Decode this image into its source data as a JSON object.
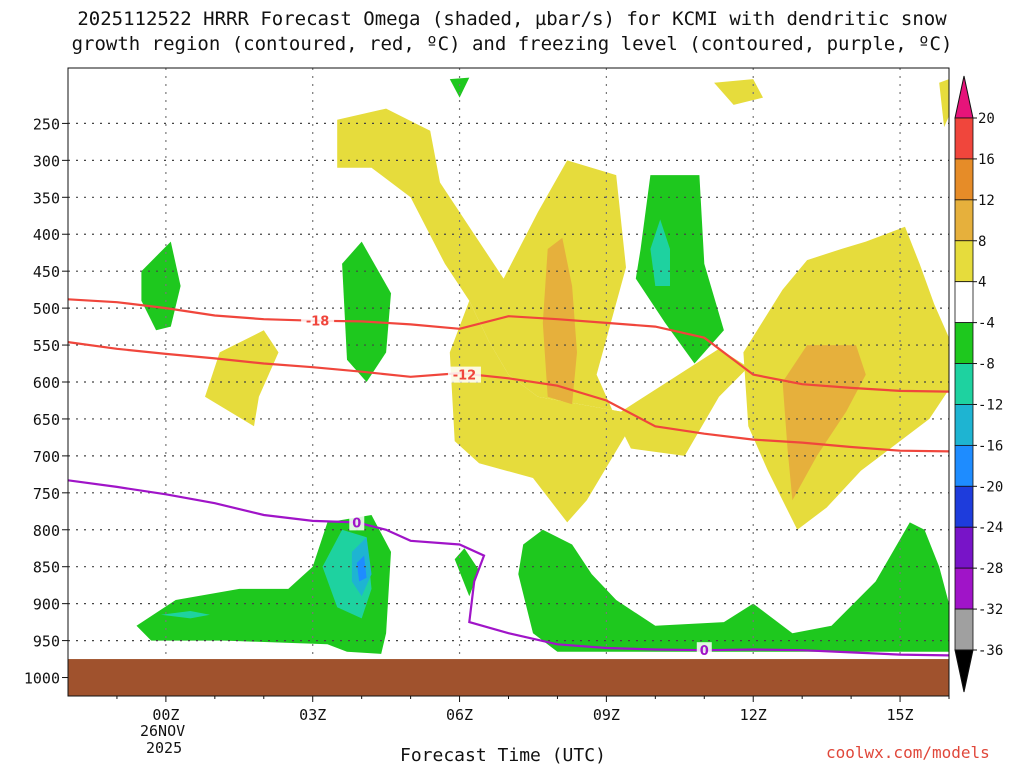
{
  "title_line1": "2025112522 HRRR Forecast Omega (shaded, µbar/s) for KCMI with dendritic snow",
  "title_line2": "growth region (contoured, red, ºC) and freezing level (contoured, purple, ºC)",
  "xlabel": "Forecast Time (UTC)",
  "credit": "coolwx.com/models",
  "date_line1": "26NOV",
  "date_line2": "2025",
  "chart_data": {
    "type": "contourf-timeheight",
    "x_ticks": [
      {
        "hour": 0,
        "label": "00Z"
      },
      {
        "hour": 3,
        "label": "03Z"
      },
      {
        "hour": 6,
        "label": "06Z"
      },
      {
        "hour": 9,
        "label": "09Z"
      },
      {
        "hour": 12,
        "label": "12Z"
      },
      {
        "hour": 15,
        "label": "15Z"
      }
    ],
    "xlim_hours": [
      -2,
      16
    ],
    "y_ticks": [
      250,
      300,
      350,
      400,
      450,
      500,
      550,
      600,
      650,
      700,
      750,
      800,
      850,
      900,
      950,
      1000
    ],
    "ylim_hpa": [
      175,
      1025
    ],
    "ground_hpa": 975,
    "colors": {
      "ground": "#a0522d",
      "yellow": "#e6dc3c",
      "orange": "#e6b03c",
      "green": "#1ec81e",
      "teal": "#1ed2a0",
      "cyan": "#1eb4d2",
      "blue": "#1e8cff",
      "contour_red": "#f0463c",
      "contour_purple": "#a014c8",
      "grid": "#888888"
    },
    "colorbar": [
      {
        "label": "20",
        "color": "#e6147a"
      },
      {
        "label": "16",
        "color": "#f0463c"
      },
      {
        "label": "12",
        "color": "#e68c28"
      },
      {
        "label": "8",
        "color": "#e6b03c"
      },
      {
        "label": "4",
        "color": "#e6dc3c"
      },
      {
        "label": "-4",
        "color": "#ffffff"
      },
      {
        "label": "-8",
        "color": "#1ec81e"
      },
      {
        "label": "-12",
        "color": "#1ed2a0"
      },
      {
        "label": "-16",
        "color": "#1eb4d2"
      },
      {
        "label": "-20",
        "color": "#1e8cff"
      },
      {
        "label": "-24",
        "color": "#1e3cdc"
      },
      {
        "label": "-28",
        "color": "#7814c8"
      },
      {
        "label": "-32",
        "color": "#a014c8"
      },
      {
        "label": "-36",
        "color": "#a0a0a0"
      }
    ],
    "colorbar_top_color": "#e6147a",
    "colorbar_bottom_color": "#000000",
    "contours": [
      {
        "name": "minus18-contour",
        "label": "-18",
        "label_at": {
          "t": 3.1,
          "p": 517
        },
        "color": "contour_red",
        "points": [
          [
            -2,
            488
          ],
          [
            -1,
            492
          ],
          [
            0,
            500
          ],
          [
            1,
            510
          ],
          [
            2,
            515
          ],
          [
            3,
            517
          ],
          [
            4,
            518
          ],
          [
            5,
            522
          ],
          [
            6,
            528
          ],
          [
            7,
            511
          ],
          [
            8,
            515
          ],
          [
            9,
            520
          ],
          [
            10,
            525
          ],
          [
            11,
            540
          ],
          [
            12,
            590
          ],
          [
            13,
            603
          ],
          [
            14,
            608
          ],
          [
            15,
            612
          ],
          [
            16,
            613
          ]
        ]
      },
      {
        "name": "minus12-contour",
        "label": "-12",
        "label_at": {
          "t": 6.1,
          "p": 590
        },
        "color": "contour_red",
        "points": [
          [
            -2,
            546
          ],
          [
            -1,
            555
          ],
          [
            0,
            562
          ],
          [
            1,
            568
          ],
          [
            2,
            575
          ],
          [
            3,
            580
          ],
          [
            4,
            586
          ],
          [
            5,
            593
          ],
          [
            6,
            588
          ],
          [
            7,
            595
          ],
          [
            8,
            605
          ],
          [
            9,
            625
          ],
          [
            10,
            660
          ],
          [
            11,
            670
          ],
          [
            12,
            678
          ],
          [
            13,
            682
          ],
          [
            14,
            688
          ],
          [
            15,
            693
          ],
          [
            16,
            694
          ]
        ]
      },
      {
        "name": "freezing-level-contour",
        "label": "0",
        "label_at": {
          "t": 3.9,
          "p": 790
        },
        "color": "contour_purple",
        "points": [
          [
            -2,
            733
          ],
          [
            -1,
            742
          ],
          [
            0,
            752
          ],
          [
            1,
            764
          ],
          [
            2,
            780
          ],
          [
            3,
            788
          ],
          [
            3.9,
            790
          ],
          [
            4.5,
            800
          ],
          [
            5,
            815
          ],
          [
            6,
            820
          ],
          [
            6.5,
            835
          ],
          [
            6.3,
            870
          ],
          [
            6.2,
            925
          ],
          [
            7,
            940
          ],
          [
            8,
            955
          ],
          [
            9,
            960
          ],
          [
            10,
            962
          ],
          [
            11,
            963
          ],
          [
            12,
            962
          ],
          [
            13,
            963
          ],
          [
            14,
            966
          ],
          [
            15,
            969
          ],
          [
            16,
            970
          ]
        ]
      },
      {
        "name": "freezing-level-lower-contour",
        "label": "0",
        "label_at": {
          "t": 11,
          "p": 963
        },
        "color": "contour_purple",
        "points": []
      }
    ],
    "shaded_regions": [
      {
        "name": "yellow-region-upper-center",
        "value": "4 to 8",
        "color": "yellow",
        "points": [
          [
            3.5,
            245
          ],
          [
            4.5,
            230
          ],
          [
            5.4,
            260
          ],
          [
            5.6,
            330
          ],
          [
            6.3,
            400
          ],
          [
            6.9,
            460
          ],
          [
            7.6,
            370
          ],
          [
            8.2,
            300
          ],
          [
            9.2,
            320
          ],
          [
            9.4,
            445
          ],
          [
            8.8,
            590
          ],
          [
            9.2,
            650
          ],
          [
            9.5,
            690
          ],
          [
            10.6,
            700
          ],
          [
            11.3,
            620
          ],
          [
            11.9,
            580
          ],
          [
            11.3,
            555
          ],
          [
            9.3,
            640
          ],
          [
            7.6,
            620
          ],
          [
            7,
            590
          ],
          [
            6.6,
            545
          ],
          [
            6.2,
            490
          ],
          [
            5.7,
            440
          ],
          [
            5,
            350
          ],
          [
            4.2,
            310
          ],
          [
            3.5,
            310
          ]
        ]
      },
      {
        "name": "yellow-region-lower-center",
        "value": "4 to 8",
        "color": "yellow",
        "points": [
          [
            6.2,
            490
          ],
          [
            6.6,
            545
          ],
          [
            7,
            590
          ],
          [
            7.6,
            620
          ],
          [
            9.3,
            640
          ],
          [
            9.5,
            660
          ],
          [
            8.6,
            760
          ],
          [
            8.2,
            790
          ],
          [
            7.5,
            730
          ],
          [
            6.4,
            710
          ],
          [
            5.9,
            680
          ],
          [
            5.8,
            560
          ]
        ]
      },
      {
        "name": "yellow-region-right",
        "value": "4 to 8",
        "color": "yellow",
        "points": [
          [
            11.8,
            560
          ],
          [
            12.6,
            475
          ],
          [
            13.1,
            435
          ],
          [
            13.8,
            420
          ],
          [
            14.3,
            410
          ],
          [
            15.1,
            390
          ],
          [
            15.4,
            440
          ],
          [
            15.7,
            495
          ],
          [
            16,
            540
          ],
          [
            16,
            610
          ],
          [
            15.6,
            650
          ],
          [
            14.8,
            690
          ],
          [
            14.2,
            720
          ],
          [
            13.5,
            770
          ],
          [
            12.9,
            800
          ],
          [
            12.3,
            720
          ],
          [
            11.9,
            660
          ]
        ]
      },
      {
        "name": "yellow-region-left",
        "value": "4 to 8",
        "color": "yellow",
        "points": [
          [
            1.1,
            560
          ],
          [
            2.0,
            530
          ],
          [
            2.3,
            560
          ],
          [
            1.9,
            620
          ],
          [
            1.8,
            660
          ],
          [
            0.8,
            620
          ]
        ]
      },
      {
        "name": "yellow-region-top-right",
        "value": "4 to 8",
        "color": "yellow",
        "points": [
          [
            11.2,
            195
          ],
          [
            12.0,
            190
          ],
          [
            12.2,
            215
          ],
          [
            11.6,
            225
          ]
        ]
      },
      {
        "name": "yellow-region-edge",
        "value": "4 to 8",
        "color": "yellow",
        "points": [
          [
            15.8,
            195
          ],
          [
            16,
            190
          ],
          [
            16,
            240
          ],
          [
            15.9,
            255
          ]
        ]
      },
      {
        "name": "orange-region-center",
        "value": "8 to 12",
        "color": "orange",
        "points": [
          [
            7.8,
            420
          ],
          [
            8.1,
            405
          ],
          [
            8.3,
            470
          ],
          [
            8.4,
            560
          ],
          [
            8.3,
            630
          ],
          [
            7.8,
            620
          ],
          [
            7.7,
            520
          ]
        ]
      },
      {
        "name": "orange-region-right",
        "value": "8 to 12",
        "color": "orange",
        "points": [
          [
            12.6,
            600
          ],
          [
            13.1,
            550
          ],
          [
            14.1,
            550
          ],
          [
            14.3,
            590
          ],
          [
            13.9,
            640
          ],
          [
            13.3,
            700
          ],
          [
            12.8,
            760
          ],
          [
            12.7,
            690
          ]
        ]
      },
      {
        "name": "green-region-right-upper",
        "value": "-4 to -8",
        "color": "green",
        "points": [
          [
            9.7,
            420
          ],
          [
            9.9,
            320
          ],
          [
            10.9,
            320
          ],
          [
            11.0,
            440
          ],
          [
            11.4,
            530
          ],
          [
            10.8,
            575
          ],
          [
            10.2,
            520
          ],
          [
            9.6,
            460
          ]
        ]
      },
      {
        "name": "green-region-center",
        "value": "-4 to -8",
        "color": "green",
        "points": [
          [
            3.6,
            440
          ],
          [
            4.0,
            410
          ],
          [
            4.6,
            480
          ],
          [
            4.5,
            560
          ],
          [
            4.1,
            600
          ],
          [
            3.7,
            570
          ]
        ]
      },
      {
        "name": "green-region-left",
        "value": "-4 to -8",
        "color": "green",
        "points": [
          [
            -0.5,
            450
          ],
          [
            0.1,
            410
          ],
          [
            0.3,
            470
          ],
          [
            0.1,
            525
          ],
          [
            -0.2,
            530
          ],
          [
            -0.5,
            490
          ]
        ]
      },
      {
        "name": "green-region-top",
        "value": "-4 to -8",
        "color": "green",
        "points": [
          [
            5.8,
            190
          ],
          [
            6.2,
            188
          ],
          [
            6.0,
            215
          ]
        ]
      },
      {
        "name": "green-region-low-left",
        "value": "-4 to -8",
        "color": "green",
        "points": [
          [
            -0.6,
            930
          ],
          [
            0.2,
            895
          ],
          [
            1.5,
            880
          ],
          [
            2.5,
            880
          ],
          [
            3.0,
            850
          ],
          [
            3.3,
            790
          ],
          [
            4.2,
            780
          ],
          [
            4.6,
            830
          ],
          [
            4.5,
            940
          ],
          [
            4.4,
            968
          ],
          [
            3.7,
            965
          ],
          [
            3.3,
            955
          ],
          [
            1.2,
            950
          ],
          [
            -0.3,
            950
          ]
        ]
      },
      {
        "name": "green-region-low-right",
        "value": "-4 to -8",
        "color": "green",
        "points": [
          [
            7.3,
            820
          ],
          [
            7.7,
            800
          ],
          [
            8.3,
            820
          ],
          [
            8.7,
            860
          ],
          [
            9.2,
            895
          ],
          [
            10.0,
            930
          ],
          [
            11.4,
            925
          ],
          [
            12.0,
            900
          ],
          [
            12.8,
            940
          ],
          [
            13.6,
            930
          ],
          [
            14.5,
            870
          ],
          [
            15.2,
            790
          ],
          [
            15.5,
            800
          ],
          [
            15.8,
            850
          ],
          [
            16,
            900
          ],
          [
            16,
            965
          ],
          [
            8.0,
            965
          ],
          [
            7.5,
            940
          ],
          [
            7.2,
            860
          ]
        ]
      },
      {
        "name": "green-region-small",
        "value": "-4 to -8",
        "color": "green",
        "points": [
          [
            5.9,
            840
          ],
          [
            6.1,
            825
          ],
          [
            6.4,
            855
          ],
          [
            6.2,
            890
          ]
        ]
      },
      {
        "name": "teal-region-upper",
        "value": "-8 to -12",
        "color": "teal",
        "points": [
          [
            9.9,
            420
          ],
          [
            10.1,
            380
          ],
          [
            10.3,
            420
          ],
          [
            10.3,
            470
          ],
          [
            10.0,
            470
          ]
        ]
      },
      {
        "name": "teal-region-low",
        "value": "-8 to -12",
        "color": "teal",
        "points": [
          [
            3.2,
            850
          ],
          [
            3.6,
            800
          ],
          [
            4.1,
            810
          ],
          [
            4.2,
            880
          ],
          [
            4.0,
            920
          ],
          [
            3.5,
            905
          ]
        ]
      },
      {
        "name": "teal-region-left",
        "value": "-8 to -12",
        "color": "teal",
        "points": [
          [
            -0.1,
            915
          ],
          [
            0.5,
            910
          ],
          [
            0.9,
            915
          ],
          [
            0.5,
            920
          ]
        ]
      },
      {
        "name": "cyan-region-low",
        "value": "-12 to -16",
        "color": "cyan",
        "points": [
          [
            3.8,
            830
          ],
          [
            4.1,
            810
          ],
          [
            4.2,
            860
          ],
          [
            4.0,
            890
          ],
          [
            3.8,
            870
          ]
        ]
      },
      {
        "name": "blue-region-low",
        "value": "-16 to -20",
        "color": "blue",
        "points": [
          [
            3.9,
            845
          ],
          [
            4.05,
            835
          ],
          [
            4.1,
            865
          ],
          [
            3.95,
            870
          ]
        ]
      }
    ]
  }
}
